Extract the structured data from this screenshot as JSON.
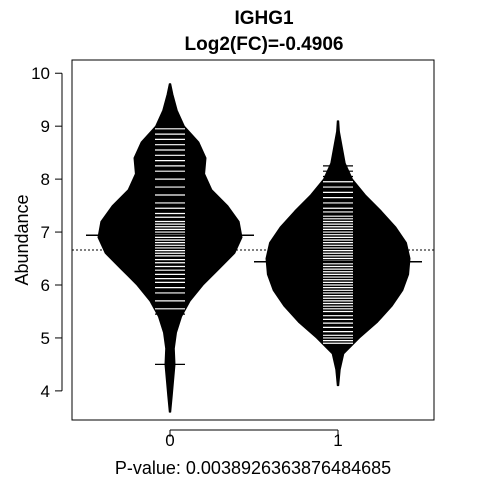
{
  "chart_data": {
    "type": "beanplot",
    "title": "IGHG1",
    "subtitle": "Log2(FC)=-0.4906",
    "xlabel": "P-value: 0.0038926363876484685",
    "ylabel": "Abundance",
    "categories": [
      "0",
      "1"
    ],
    "ylim": [
      3.45,
      10.25
    ],
    "yticks": [
      4,
      5,
      6,
      7,
      8,
      9,
      10
    ],
    "overall_mean": 6.66,
    "groups": [
      {
        "name": "0",
        "mean": 6.94,
        "range": [
          3.6,
          9.8
        ],
        "density": [
          [
            3.6,
            0.01
          ],
          [
            3.9,
            0.03
          ],
          [
            4.2,
            0.05
          ],
          [
            4.5,
            0.07
          ],
          [
            4.8,
            0.06
          ],
          [
            5.1,
            0.09
          ],
          [
            5.4,
            0.16
          ],
          [
            5.7,
            0.28
          ],
          [
            6.0,
            0.46
          ],
          [
            6.3,
            0.68
          ],
          [
            6.6,
            0.9
          ],
          [
            6.9,
            1.0
          ],
          [
            7.2,
            0.96
          ],
          [
            7.5,
            0.8
          ],
          [
            7.8,
            0.58
          ],
          [
            8.1,
            0.48
          ],
          [
            8.4,
            0.5
          ],
          [
            8.7,
            0.4
          ],
          [
            9.0,
            0.2
          ],
          [
            9.3,
            0.1
          ],
          [
            9.6,
            0.04
          ],
          [
            9.8,
            0.01
          ]
        ],
        "observations": [
          4.5,
          5.45,
          5.55,
          5.7,
          5.85,
          5.95,
          6.05,
          6.12,
          6.2,
          6.28,
          6.35,
          6.42,
          6.48,
          6.55,
          6.6,
          6.65,
          6.7,
          6.75,
          6.8,
          6.85,
          6.9,
          6.95,
          7.0,
          7.05,
          7.1,
          7.15,
          7.2,
          7.28,
          7.35,
          7.45,
          7.55,
          7.7,
          7.85,
          8.0,
          8.15,
          8.25,
          8.35,
          8.45,
          8.55,
          8.65,
          8.75,
          8.85,
          8.95
        ]
      },
      {
        "name": "1",
        "mean": 6.44,
        "range": [
          4.1,
          9.1
        ],
        "density": [
          [
            4.1,
            0.01
          ],
          [
            4.4,
            0.03
          ],
          [
            4.7,
            0.08
          ],
          [
            5.0,
            0.3
          ],
          [
            5.3,
            0.55
          ],
          [
            5.6,
            0.75
          ],
          [
            5.9,
            0.9
          ],
          [
            6.2,
            0.98
          ],
          [
            6.5,
            1.0
          ],
          [
            6.8,
            0.95
          ],
          [
            7.1,
            0.8
          ],
          [
            7.4,
            0.6
          ],
          [
            7.7,
            0.38
          ],
          [
            8.0,
            0.2
          ],
          [
            8.3,
            0.1
          ],
          [
            8.6,
            0.06
          ],
          [
            8.9,
            0.02
          ],
          [
            9.1,
            0.01
          ]
        ],
        "observations": [
          4.9,
          4.95,
          5.0,
          5.05,
          5.12,
          5.2,
          5.28,
          5.35,
          5.42,
          5.5,
          5.55,
          5.6,
          5.65,
          5.7,
          5.75,
          5.8,
          5.85,
          5.9,
          5.95,
          6.0,
          6.05,
          6.1,
          6.15,
          6.2,
          6.25,
          6.3,
          6.35,
          6.4,
          6.45,
          6.5,
          6.55,
          6.6,
          6.65,
          6.7,
          6.75,
          6.8,
          6.85,
          6.9,
          6.95,
          7.0,
          7.05,
          7.1,
          7.15,
          7.2,
          7.25,
          7.3,
          7.38,
          7.45,
          7.55,
          7.65,
          7.75,
          7.85,
          7.95,
          8.05,
          8.15,
          8.25
        ]
      }
    ]
  }
}
